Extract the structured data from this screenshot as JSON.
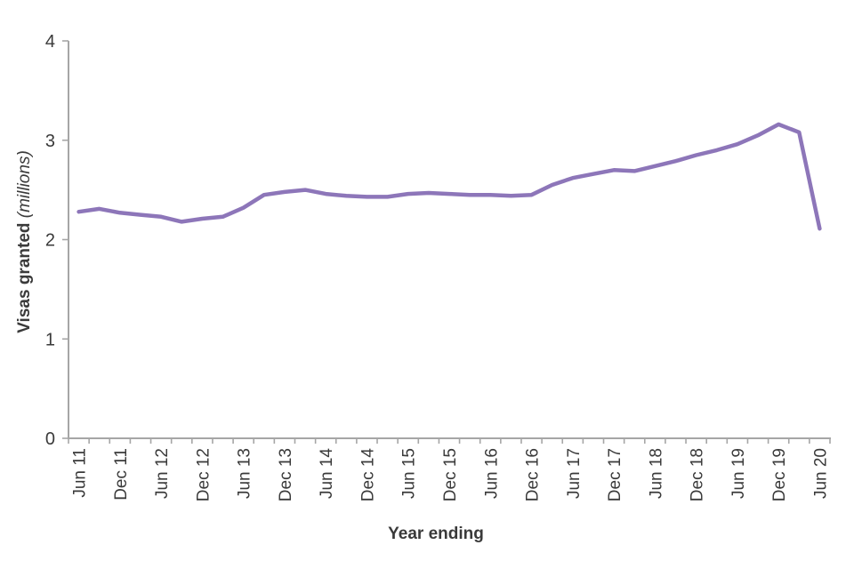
{
  "page": {
    "background_color": "#ffffff"
  },
  "chart_data": {
    "type": "line",
    "title": "",
    "xlabel": "Year ending",
    "ylabel_bold": "Visas granted",
    "ylabel_italic": "(millions)",
    "categories": [
      "Jun 11",
      "Sep 11",
      "Dec 11",
      "Mar 12",
      "Jun 12",
      "Sep 12",
      "Dec 12",
      "Mar 13",
      "Jun 13",
      "Sep 13",
      "Dec 13",
      "Mar 14",
      "Jun 14",
      "Sep 14",
      "Dec 14",
      "Mar 15",
      "Jun 15",
      "Sep 15",
      "Dec 15",
      "Mar 16",
      "Jun 16",
      "Sep 16",
      "Dec 16",
      "Mar 17",
      "Jun 17",
      "Sep 17",
      "Dec 17",
      "Mar 18",
      "Jun 18",
      "Sep 18",
      "Dec 18",
      "Mar 19",
      "Jun 19",
      "Sep 19",
      "Dec 19",
      "Mar 20",
      "Jun 20"
    ],
    "x_label_every": 2,
    "visible_x_labels": [
      "Jun 11",
      "Dec 11",
      "Jun 12",
      "Dec 12",
      "Jun 13",
      "Dec 13",
      "Jun 14",
      "Dec 14",
      "Jun 15",
      "Dec 15",
      "Jun 16",
      "Dec 16",
      "Jun 17",
      "Dec 17",
      "Jun 18",
      "Dec 18",
      "Jun 19",
      "Dec 19",
      "Jun 20"
    ],
    "series": [
      {
        "name": "Visas granted",
        "color": "#8d76b9",
        "values": [
          2.28,
          2.31,
          2.27,
          2.25,
          2.23,
          2.18,
          2.21,
          2.23,
          2.32,
          2.45,
          2.48,
          2.5,
          2.46,
          2.44,
          2.43,
          2.43,
          2.46,
          2.47,
          2.46,
          2.45,
          2.45,
          2.44,
          2.45,
          2.55,
          2.62,
          2.66,
          2.7,
          2.69,
          2.74,
          2.79,
          2.85,
          2.9,
          2.96,
          3.05,
          3.16,
          3.08,
          2.11
        ]
      }
    ],
    "ylim": [
      0,
      4
    ],
    "y_ticks": [
      0,
      1,
      2,
      3,
      4
    ],
    "grid": false,
    "legend_position": "none",
    "axis_color": "#a6a6a6",
    "text_color": "#3a3a3a"
  }
}
